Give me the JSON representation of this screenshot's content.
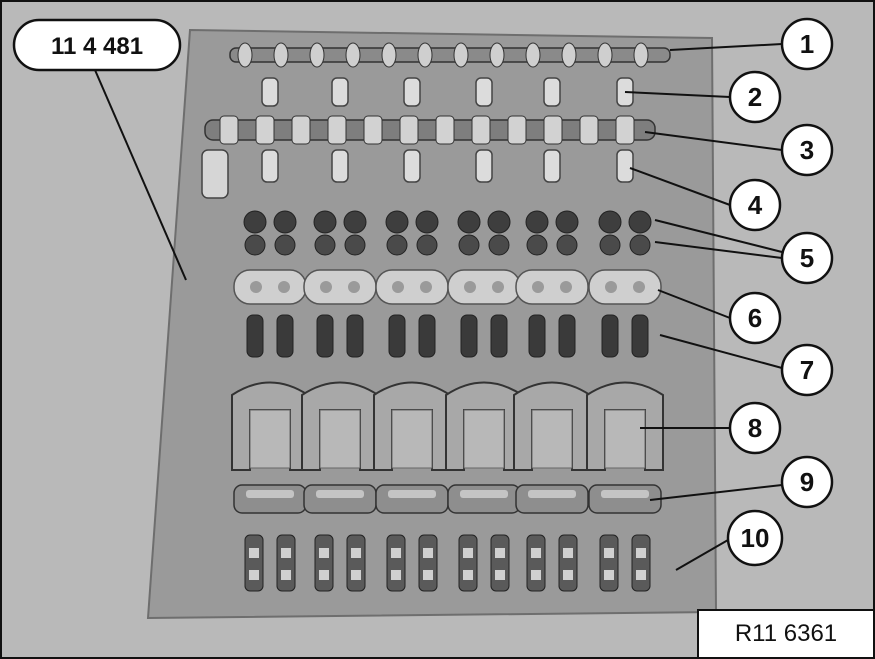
{
  "tool_label": "11 4 481",
  "figure_ref": "R11 6361",
  "callouts": [
    "1",
    "2",
    "3",
    "4",
    "5",
    "6",
    "7",
    "8",
    "9",
    "10"
  ],
  "colors": {
    "background": "#b9b9b9",
    "tray": "#9c9c9c",
    "part_dark": "#3a3a3a",
    "part_light": "#d9d9d9",
    "outline": "#111111"
  }
}
